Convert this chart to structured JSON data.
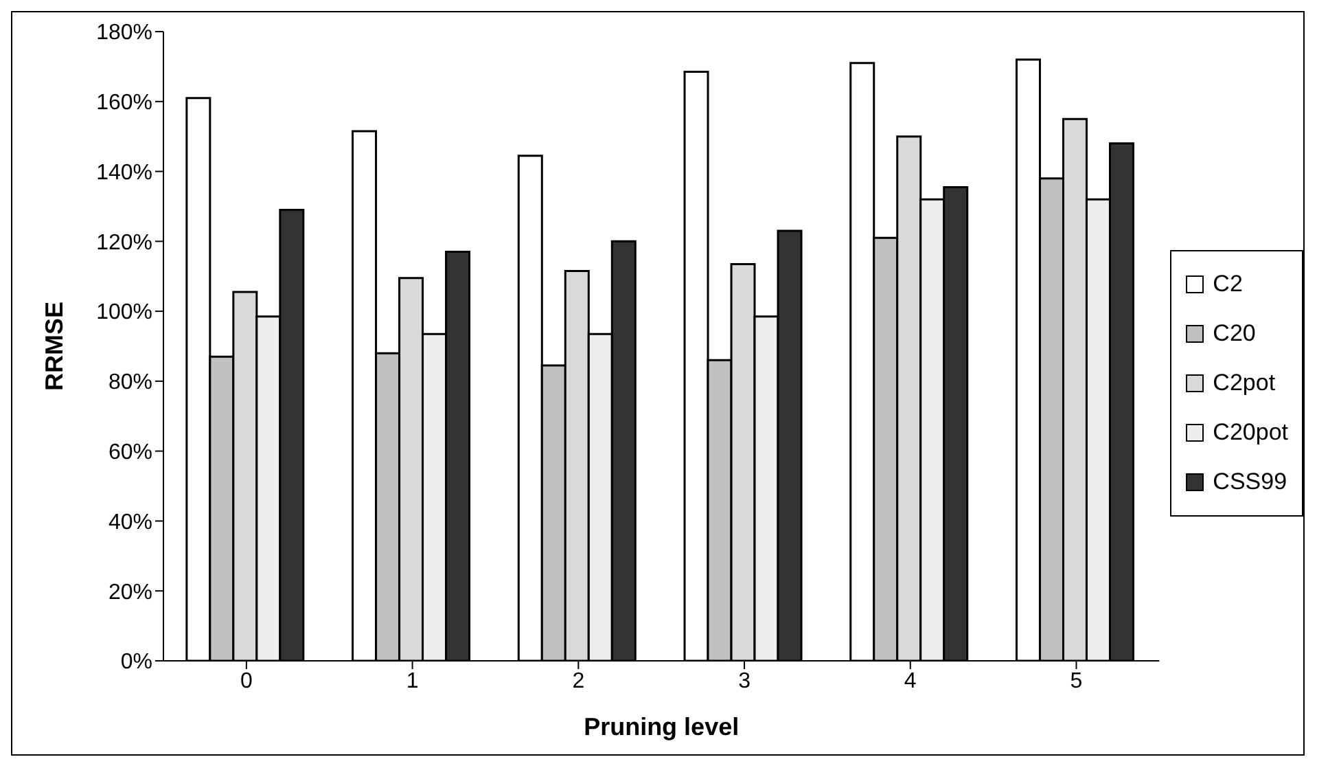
{
  "chart_data": {
    "type": "bar",
    "xlabel": "Pruning level",
    "ylabel": "RRMSE",
    "categories": [
      "0",
      "1",
      "2",
      "3",
      "4",
      "5"
    ],
    "series": [
      {
        "name": "C2",
        "color": "#ffffff",
        "values": [
          161,
          151.5,
          144.5,
          168.5,
          171,
          172
        ]
      },
      {
        "name": "C20",
        "color": "#c0c0c0",
        "values": [
          87,
          88,
          84.5,
          86,
          121,
          138
        ]
      },
      {
        "name": "C2pot",
        "color": "#d9d9d9",
        "values": [
          105.5,
          109.5,
          111.5,
          113.5,
          150,
          155
        ]
      },
      {
        "name": "C20pot",
        "color": "#eeeeee",
        "values": [
          98.5,
          93.5,
          93.5,
          98.5,
          132,
          132
        ]
      },
      {
        "name": "CSS99",
        "color": "#333333",
        "values": [
          129,
          117,
          120,
          123,
          135.5,
          148
        ]
      }
    ],
    "ylim": [
      0,
      180
    ],
    "yticks": [
      {
        "value": 0,
        "label": "0%"
      },
      {
        "value": 20,
        "label": "20%"
      },
      {
        "value": 40,
        "label": "40%"
      },
      {
        "value": 60,
        "label": "60%"
      },
      {
        "value": 80,
        "label": "80%"
      },
      {
        "value": 100,
        "label": "100%"
      },
      {
        "value": 120,
        "label": "120%"
      },
      {
        "value": 140,
        "label": "140%"
      },
      {
        "value": 160,
        "label": "160%"
      },
      {
        "value": 180,
        "label": "180%"
      }
    ],
    "grid": false,
    "legend": "right"
  }
}
